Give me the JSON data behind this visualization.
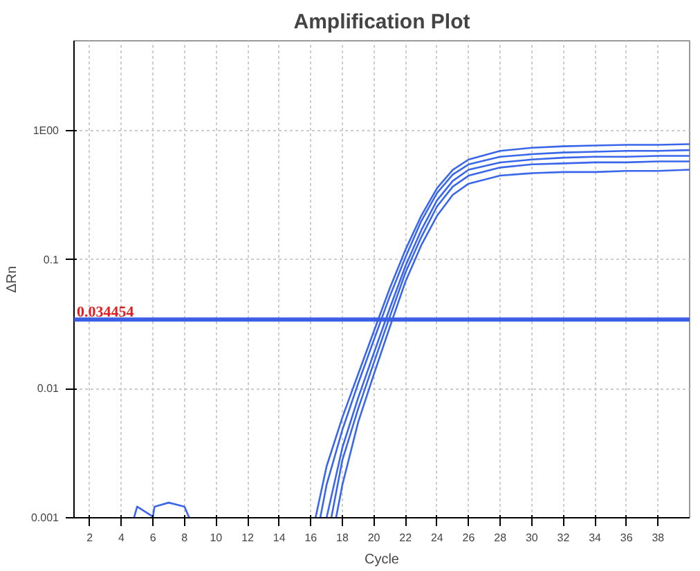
{
  "chart_data": {
    "type": "line",
    "title": "Amplification Plot",
    "xlabel": "Cycle",
    "ylabel": "ΔRn",
    "log": "y",
    "grid": true,
    "marker": "none",
    "line_style": "solid",
    "xlim": [
      1,
      40
    ],
    "ylim": [
      0.001,
      5
    ],
    "xticks": [
      2,
      4,
      6,
      8,
      10,
      12,
      14,
      16,
      18,
      20,
      22,
      24,
      26,
      28,
      30,
      32,
      34,
      36,
      38
    ],
    "yticks": [
      0.001,
      0.01,
      0.1,
      {
        "value": 1,
        "label": "1E00"
      }
    ],
    "ref_lines": [
      {
        "axis": "y",
        "value": 0.034454,
        "label": "0.034454",
        "color": "#3a5fe6"
      }
    ],
    "series": [
      {
        "color": "#3a66ea",
        "x": [
          16.3,
          17,
          18,
          19,
          20,
          21,
          22,
          23,
          24,
          25,
          26,
          28,
          30,
          32,
          34,
          36,
          38,
          40
        ],
        "values": [
          0.001,
          0.0025,
          0.006,
          0.013,
          0.028,
          0.06,
          0.12,
          0.22,
          0.36,
          0.5,
          0.6,
          0.7,
          0.74,
          0.76,
          0.77,
          0.78,
          0.78,
          0.79
        ]
      },
      {
        "color": "#3a66ea",
        "x": [
          16.6,
          17,
          18,
          19,
          20,
          21,
          22,
          23,
          24,
          25,
          26,
          28,
          30,
          32,
          34,
          36,
          38,
          40
        ],
        "values": [
          0.001,
          0.0018,
          0.0048,
          0.011,
          0.024,
          0.052,
          0.105,
          0.2,
          0.33,
          0.46,
          0.55,
          0.63,
          0.66,
          0.68,
          0.69,
          0.7,
          0.7,
          0.71
        ]
      },
      {
        "color": "#3a66ea",
        "x": [
          17,
          18,
          19,
          20,
          21,
          22,
          23,
          24,
          25,
          26,
          28,
          30,
          32,
          34,
          36,
          38,
          40
        ],
        "values": [
          0.001,
          0.0035,
          0.0085,
          0.019,
          0.042,
          0.09,
          0.17,
          0.29,
          0.41,
          0.5,
          0.57,
          0.6,
          0.62,
          0.63,
          0.63,
          0.64,
          0.64
        ]
      },
      {
        "color": "#3a66ea",
        "x": [
          17.3,
          18,
          19,
          20,
          21,
          22,
          23,
          24,
          25,
          26,
          28,
          30,
          32,
          34,
          36,
          38,
          40
        ],
        "values": [
          0.001,
          0.0028,
          0.007,
          0.016,
          0.036,
          0.08,
          0.15,
          0.26,
          0.37,
          0.45,
          0.52,
          0.55,
          0.56,
          0.57,
          0.57,
          0.58,
          0.58
        ]
      },
      {
        "color": "#3a66ea",
        "x": [
          17.6,
          18,
          19,
          20,
          21,
          22,
          23,
          24,
          25,
          26,
          28,
          30,
          32,
          34,
          36,
          38,
          40
        ],
        "values": [
          0.001,
          0.0018,
          0.0055,
          0.013,
          0.03,
          0.068,
          0.13,
          0.22,
          0.32,
          0.39,
          0.45,
          0.47,
          0.48,
          0.48,
          0.49,
          0.49,
          0.5
        ]
      },
      {
        "color": "#3a66ea",
        "x": [
          4.8,
          5,
          6,
          6.1,
          7,
          8,
          8.3
        ],
        "values": [
          0.001,
          0.00122,
          0.00102,
          0.00122,
          0.00131,
          0.00122,
          0.001
        ]
      }
    ]
  }
}
